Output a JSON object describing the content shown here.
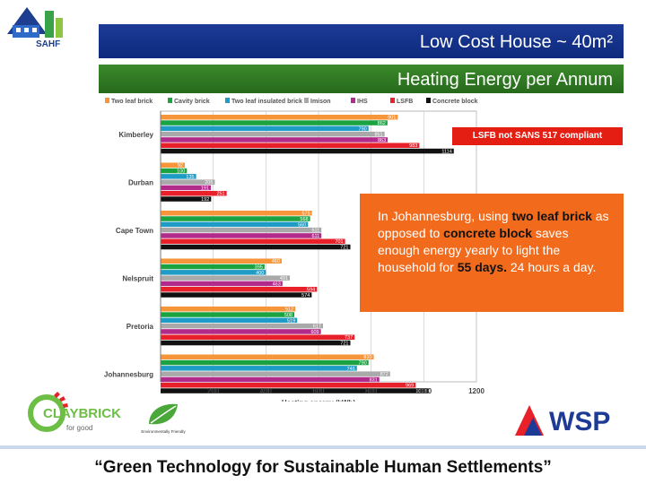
{
  "header": {
    "title": "Low Cost House ~ 40m²",
    "subtitle": "Heating Energy per Annum",
    "org_logo_text": "SAHF"
  },
  "callouts": {
    "red_note": "LSFB not SANS 517 compliant",
    "orange_note": {
      "t1": "In Johannesburg, using ",
      "b1": "two leaf brick",
      "t2": " as opposed to ",
      "b2": "concrete block",
      "t3": " saves enough energy yearly to light the household for ",
      "b3": "55 days.",
      "t4": " 24 hours a day."
    }
  },
  "logos": {
    "claybrick": "CLAYBRICK",
    "claybrick_tagline": "for good",
    "eco_caption": "Environmentally Friendly",
    "wsp": "WSP"
  },
  "footer": {
    "text": "“Green Technology for Sustainable Human Settlements”"
  },
  "colors": {
    "title_bar": "#1d3a96",
    "subtitle_bar": "#2f7d24",
    "red_callout": "#e41e13",
    "orange_callout": "#f26a1b"
  },
  "chart_data": {
    "type": "bar",
    "orientation": "horizontal",
    "xlabel": "Heating energy (kWh)",
    "xlim": [
      0,
      1200
    ],
    "xticks": [
      200,
      400,
      600,
      800,
      1000,
      1200
    ],
    "legend_position": "top",
    "categories": [
      "Kimberley",
      "Durban",
      "Cape Town",
      "Nelspruit",
      "Pretoria",
      "Johannesburg"
    ],
    "series": [
      {
        "name": "Two leaf brick",
        "color": "#f7953b",
        "values": [
          901,
          92,
          575,
          460,
          512,
          810
        ]
      },
      {
        "name": "Cavity brick",
        "color": "#1aa340",
        "values": [
          862,
          100,
          568,
          395,
          508,
          790
        ]
      },
      {
        "name": "Two leaf insulated brick",
        "color": "#1e9cc5",
        "values": [
          790,
          135,
          560,
          400,
          519,
          746
        ]
      },
      {
        "name": "Imison",
        "color": "#a9a9a9",
        "values": [
          851,
          206,
          611,
          491,
          617,
          872
        ]
      },
      {
        "name": "IHS",
        "color": "#b22a8a",
        "values": [
          863,
          191,
          611,
          463,
          609,
          831
        ]
      },
      {
        "name": "LSFB",
        "color": "#e8202a",
        "values": [
          983,
          251,
          701,
          594,
          737,
          969
        ]
      },
      {
        "name": "Concrete block",
        "color": "#111111",
        "values": [
          1114,
          192,
          721,
          574,
          721,
          1018
        ]
      }
    ]
  }
}
